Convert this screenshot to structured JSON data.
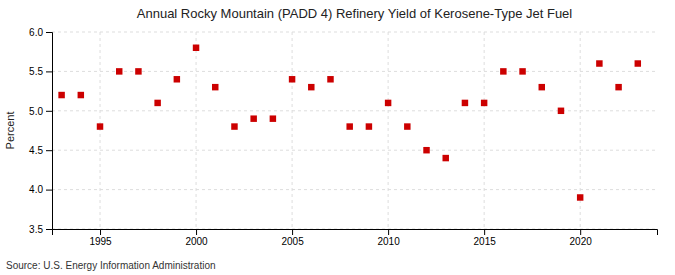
{
  "chart_data": {
    "type": "scatter",
    "title": "Annual Rocky Mountain (PADD 4) Refinery Yield of Kerosene-Type Jet Fuel",
    "y_label": "Percent",
    "annotations": [
      "Source: U.S. Energy Information Administration"
    ],
    "x": [
      1993,
      1994,
      1995,
      1996,
      1997,
      1998,
      1999,
      2000,
      2001,
      2002,
      2003,
      2004,
      2005,
      2006,
      2007,
      2008,
      2009,
      2010,
      2011,
      2012,
      2013,
      2014,
      2015,
      2016,
      2017,
      2018,
      2019,
      2020,
      2021,
      2022,
      2023
    ],
    "values": [
      5.2,
      5.2,
      4.8,
      5.5,
      5.5,
      5.1,
      5.4,
      5.8,
      5.3,
      4.8,
      4.9,
      4.9,
      5.4,
      5.3,
      5.4,
      4.8,
      4.8,
      5.1,
      4.8,
      4.5,
      4.4,
      5.1,
      5.1,
      5.5,
      5.5,
      5.3,
      5.0,
      3.9,
      5.6,
      5.3,
      5.6
    ],
    "color": "#cc0000",
    "marker": "square",
    "xlim": [
      1992.5,
      2024
    ],
    "xticks": [
      1995,
      2000,
      2005,
      2010,
      2015,
      2020
    ],
    "ylim": [
      3.5,
      6.0
    ],
    "yticks": [
      3.5,
      {
        "value": 4.0,
        "label": "4.0"
      },
      4.5,
      {
        "value": 5.0,
        "label": "5.0"
      },
      5.5,
      {
        "value": 6.0,
        "label": "6.0"
      }
    ],
    "grid": true
  }
}
